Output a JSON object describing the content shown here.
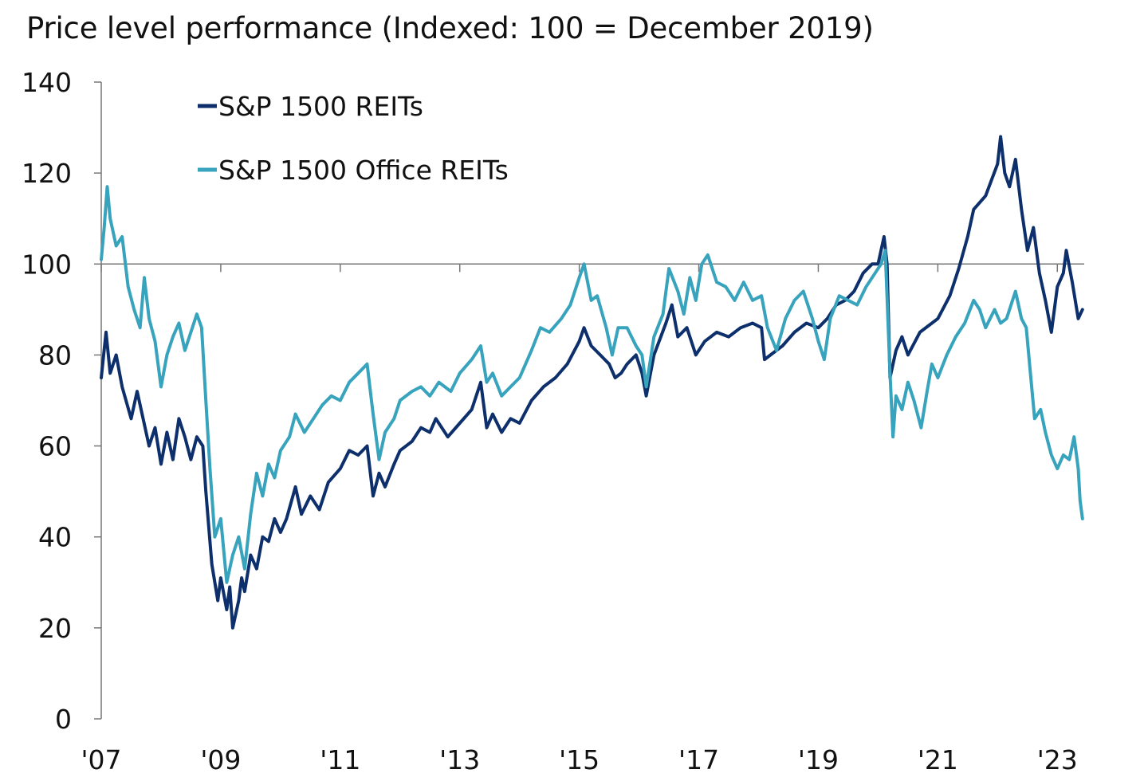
{
  "chart_data": {
    "type": "line",
    "title": "Price level performance (Indexed: 100 = December 2019)",
    "xlabel": "",
    "ylabel": "",
    "xlim": [
      2007.0,
      2023.45
    ],
    "ylim": [
      0,
      140
    ],
    "yticks": [
      0,
      20,
      40,
      60,
      80,
      100,
      120,
      140
    ],
    "ytick_labels": [
      "0",
      "20",
      "40",
      "60",
      "80",
      "100",
      "120",
      "140"
    ],
    "xticks": [
      2007,
      2009,
      2011,
      2013,
      2015,
      2017,
      2019,
      2021,
      2023
    ],
    "xtick_labels": [
      "'07",
      "'09",
      "'11",
      "'13",
      "'15",
      "'17",
      "'19",
      "'21",
      "'23"
    ],
    "reference_line": 100,
    "legend_position": "top-left",
    "series": [
      {
        "name": "S&P 1500 REITs",
        "color": "#0d2f6b",
        "points": [
          [
            2007.0,
            75
          ],
          [
            2007.08,
            85
          ],
          [
            2007.15,
            76
          ],
          [
            2007.25,
            80
          ],
          [
            2007.35,
            73
          ],
          [
            2007.5,
            66
          ],
          [
            2007.6,
            72
          ],
          [
            2007.7,
            66
          ],
          [
            2007.8,
            60
          ],
          [
            2007.9,
            64
          ],
          [
            2008.0,
            56
          ],
          [
            2008.1,
            63
          ],
          [
            2008.2,
            57
          ],
          [
            2008.3,
            66
          ],
          [
            2008.4,
            62
          ],
          [
            2008.5,
            57
          ],
          [
            2008.6,
            62
          ],
          [
            2008.7,
            60
          ],
          [
            2008.75,
            50
          ],
          [
            2008.85,
            34
          ],
          [
            2008.95,
            26
          ],
          [
            2009.0,
            31
          ],
          [
            2009.1,
            24
          ],
          [
            2009.15,
            29
          ],
          [
            2009.2,
            20
          ],
          [
            2009.3,
            26
          ],
          [
            2009.35,
            31
          ],
          [
            2009.4,
            28
          ],
          [
            2009.5,
            36
          ],
          [
            2009.6,
            33
          ],
          [
            2009.7,
            40
          ],
          [
            2009.8,
            39
          ],
          [
            2009.9,
            44
          ],
          [
            2010.0,
            41
          ],
          [
            2010.1,
            44
          ],
          [
            2010.25,
            51
          ],
          [
            2010.35,
            45
          ],
          [
            2010.5,
            49
          ],
          [
            2010.65,
            46
          ],
          [
            2010.8,
            52
          ],
          [
            2011.0,
            55
          ],
          [
            2011.15,
            59
          ],
          [
            2011.3,
            58
          ],
          [
            2011.45,
            60
          ],
          [
            2011.55,
            49
          ],
          [
            2011.65,
            54
          ],
          [
            2011.75,
            51
          ],
          [
            2011.9,
            56
          ],
          [
            2012.0,
            59
          ],
          [
            2012.2,
            61
          ],
          [
            2012.35,
            64
          ],
          [
            2012.5,
            63
          ],
          [
            2012.6,
            66
          ],
          [
            2012.8,
            62
          ],
          [
            2013.0,
            65
          ],
          [
            2013.2,
            68
          ],
          [
            2013.35,
            74
          ],
          [
            2013.45,
            64
          ],
          [
            2013.55,
            67
          ],
          [
            2013.7,
            63
          ],
          [
            2013.85,
            66
          ],
          [
            2014.0,
            65
          ],
          [
            2014.2,
            70
          ],
          [
            2014.4,
            73
          ],
          [
            2014.6,
            75
          ],
          [
            2014.8,
            78
          ],
          [
            2015.0,
            83
          ],
          [
            2015.08,
            86
          ],
          [
            2015.2,
            82
          ],
          [
            2015.35,
            80
          ],
          [
            2015.5,
            78
          ],
          [
            2015.6,
            75
          ],
          [
            2015.7,
            76
          ],
          [
            2015.8,
            78
          ],
          [
            2015.95,
            80
          ],
          [
            2016.05,
            76
          ],
          [
            2016.12,
            71
          ],
          [
            2016.25,
            80
          ],
          [
            2016.45,
            87
          ],
          [
            2016.55,
            91
          ],
          [
            2016.65,
            84
          ],
          [
            2016.8,
            86
          ],
          [
            2016.95,
            80
          ],
          [
            2017.1,
            83
          ],
          [
            2017.3,
            85
          ],
          [
            2017.5,
            84
          ],
          [
            2017.7,
            86
          ],
          [
            2017.9,
            87
          ],
          [
            2018.05,
            86
          ],
          [
            2018.1,
            79
          ],
          [
            2018.2,
            80
          ],
          [
            2018.4,
            82
          ],
          [
            2018.6,
            85
          ],
          [
            2018.8,
            87
          ],
          [
            2019.0,
            86
          ],
          [
            2019.15,
            88
          ],
          [
            2019.3,
            91
          ],
          [
            2019.45,
            92
          ],
          [
            2019.6,
            94
          ],
          [
            2019.75,
            98
          ],
          [
            2019.9,
            100
          ],
          [
            2020.0,
            100
          ],
          [
            2020.1,
            106
          ],
          [
            2020.15,
            100
          ],
          [
            2020.2,
            75
          ],
          [
            2020.3,
            81
          ],
          [
            2020.4,
            84
          ],
          [
            2020.5,
            80
          ],
          [
            2020.7,
            85
          ],
          [
            2020.9,
            87
          ],
          [
            2021.0,
            88
          ],
          [
            2021.2,
            93
          ],
          [
            2021.35,
            99
          ],
          [
            2021.5,
            106
          ],
          [
            2021.6,
            112
          ],
          [
            2021.8,
            115
          ],
          [
            2022.0,
            122
          ],
          [
            2022.05,
            128
          ],
          [
            2022.12,
            120
          ],
          [
            2022.2,
            117
          ],
          [
            2022.3,
            123
          ],
          [
            2022.4,
            112
          ],
          [
            2022.5,
            103
          ],
          [
            2022.6,
            108
          ],
          [
            2022.7,
            98
          ],
          [
            2022.8,
            92
          ],
          [
            2022.9,
            85
          ],
          [
            2023.0,
            95
          ],
          [
            2023.1,
            98
          ],
          [
            2023.15,
            103
          ],
          [
            2023.25,
            96
          ],
          [
            2023.35,
            88
          ],
          [
            2023.42,
            90
          ]
        ]
      },
      {
        "name": "S&P 1500 Office REITs",
        "color": "#38a3bd",
        "points": [
          [
            2007.0,
            101
          ],
          [
            2007.05,
            108
          ],
          [
            2007.1,
            117
          ],
          [
            2007.15,
            110
          ],
          [
            2007.25,
            104
          ],
          [
            2007.35,
            106
          ],
          [
            2007.45,
            95
          ],
          [
            2007.55,
            90
          ],
          [
            2007.65,
            86
          ],
          [
            2007.72,
            97
          ],
          [
            2007.8,
            88
          ],
          [
            2007.9,
            83
          ],
          [
            2008.0,
            73
          ],
          [
            2008.1,
            80
          ],
          [
            2008.2,
            84
          ],
          [
            2008.3,
            87
          ],
          [
            2008.4,
            81
          ],
          [
            2008.5,
            85
          ],
          [
            2008.6,
            89
          ],
          [
            2008.68,
            86
          ],
          [
            2008.75,
            70
          ],
          [
            2008.82,
            55
          ],
          [
            2008.9,
            40
          ],
          [
            2009.0,
            44
          ],
          [
            2009.1,
            30
          ],
          [
            2009.2,
            36
          ],
          [
            2009.3,
            40
          ],
          [
            2009.4,
            33
          ],
          [
            2009.5,
            45
          ],
          [
            2009.6,
            54
          ],
          [
            2009.7,
            49
          ],
          [
            2009.8,
            56
          ],
          [
            2009.9,
            53
          ],
          [
            2010.0,
            59
          ],
          [
            2010.15,
            62
          ],
          [
            2010.25,
            67
          ],
          [
            2010.4,
            63
          ],
          [
            2010.55,
            66
          ],
          [
            2010.7,
            69
          ],
          [
            2010.85,
            71
          ],
          [
            2011.0,
            70
          ],
          [
            2011.15,
            74
          ],
          [
            2011.3,
            76
          ],
          [
            2011.45,
            78
          ],
          [
            2011.55,
            67
          ],
          [
            2011.65,
            57
          ],
          [
            2011.75,
            63
          ],
          [
            2011.9,
            66
          ],
          [
            2012.0,
            70
          ],
          [
            2012.2,
            72
          ],
          [
            2012.35,
            73
          ],
          [
            2012.5,
            71
          ],
          [
            2012.65,
            74
          ],
          [
            2012.85,
            72
          ],
          [
            2013.0,
            76
          ],
          [
            2013.2,
            79
          ],
          [
            2013.35,
            82
          ],
          [
            2013.45,
            74
          ],
          [
            2013.55,
            76
          ],
          [
            2013.7,
            71
          ],
          [
            2013.85,
            73
          ],
          [
            2014.0,
            75
          ],
          [
            2014.2,
            81
          ],
          [
            2014.35,
            86
          ],
          [
            2014.5,
            85
          ],
          [
            2014.7,
            88
          ],
          [
            2014.85,
            91
          ],
          [
            2015.0,
            97
          ],
          [
            2015.08,
            100
          ],
          [
            2015.2,
            92
          ],
          [
            2015.3,
            93
          ],
          [
            2015.45,
            86
          ],
          [
            2015.55,
            80
          ],
          [
            2015.65,
            86
          ],
          [
            2015.8,
            86
          ],
          [
            2015.95,
            82
          ],
          [
            2016.05,
            80
          ],
          [
            2016.12,
            73
          ],
          [
            2016.25,
            84
          ],
          [
            2016.4,
            89
          ],
          [
            2016.5,
            99
          ],
          [
            2016.65,
            94
          ],
          [
            2016.75,
            89
          ],
          [
            2016.85,
            97
          ],
          [
            2016.95,
            92
          ],
          [
            2017.05,
            100
          ],
          [
            2017.15,
            102
          ],
          [
            2017.3,
            96
          ],
          [
            2017.45,
            95
          ],
          [
            2017.6,
            92
          ],
          [
            2017.75,
            96
          ],
          [
            2017.9,
            92
          ],
          [
            2018.05,
            93
          ],
          [
            2018.15,
            86
          ],
          [
            2018.3,
            81
          ],
          [
            2018.45,
            88
          ],
          [
            2018.6,
            92
          ],
          [
            2018.75,
            94
          ],
          [
            2018.9,
            88
          ],
          [
            2019.0,
            83
          ],
          [
            2019.1,
            79
          ],
          [
            2019.2,
            88
          ],
          [
            2019.35,
            93
          ],
          [
            2019.5,
            92
          ],
          [
            2019.65,
            91
          ],
          [
            2019.8,
            95
          ],
          [
            2019.95,
            98
          ],
          [
            2020.05,
            100
          ],
          [
            2020.12,
            103
          ],
          [
            2020.2,
            76
          ],
          [
            2020.25,
            62
          ],
          [
            2020.3,
            71
          ],
          [
            2020.4,
            68
          ],
          [
            2020.5,
            74
          ],
          [
            2020.6,
            70
          ],
          [
            2020.72,
            64
          ],
          [
            2020.82,
            72
          ],
          [
            2020.9,
            78
          ],
          [
            2021.0,
            75
          ],
          [
            2021.15,
            80
          ],
          [
            2021.3,
            84
          ],
          [
            2021.45,
            87
          ],
          [
            2021.6,
            92
          ],
          [
            2021.7,
            90
          ],
          [
            2021.8,
            86
          ],
          [
            2021.95,
            90
          ],
          [
            2022.05,
            87
          ],
          [
            2022.15,
            88
          ],
          [
            2022.3,
            94
          ],
          [
            2022.4,
            88
          ],
          [
            2022.48,
            86
          ],
          [
            2022.55,
            76
          ],
          [
            2022.62,
            66
          ],
          [
            2022.72,
            68
          ],
          [
            2022.8,
            63
          ],
          [
            2022.9,
            58
          ],
          [
            2023.0,
            55
          ],
          [
            2023.1,
            58
          ],
          [
            2023.2,
            57
          ],
          [
            2023.28,
            62
          ],
          [
            2023.35,
            55
          ],
          [
            2023.38,
            48
          ],
          [
            2023.42,
            44
          ]
        ]
      }
    ]
  }
}
